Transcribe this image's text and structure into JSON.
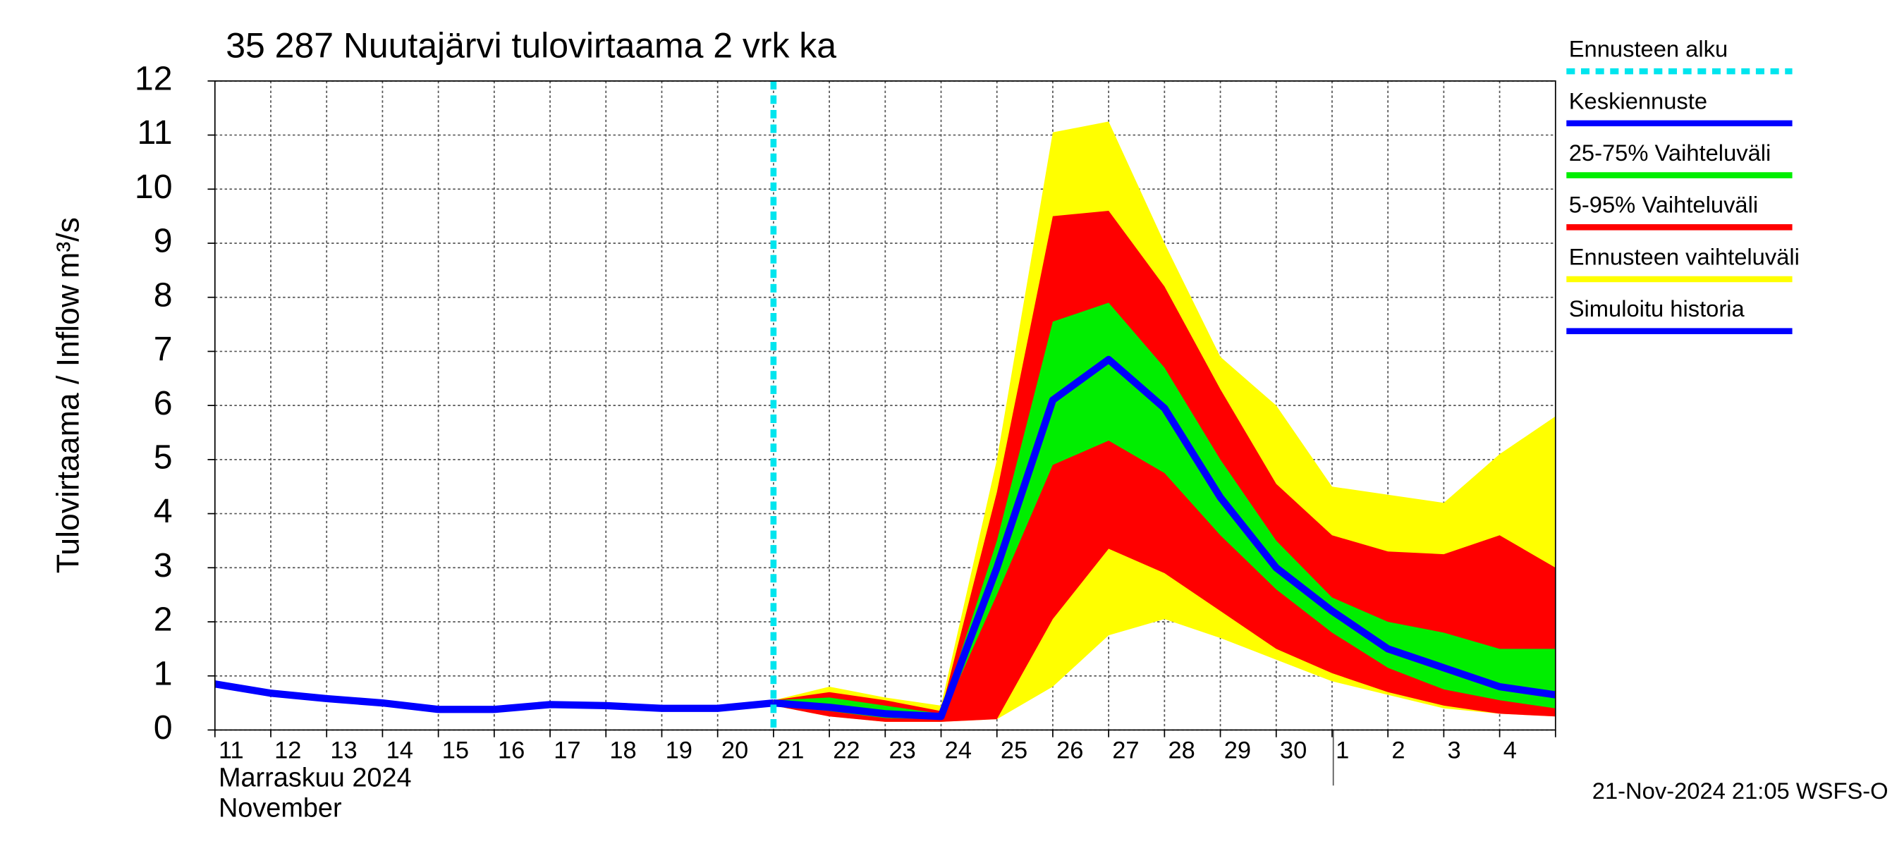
{
  "chart_data": {
    "type": "band-forecast",
    "title": "35 287 Nuutajärvi tulovirtaama 2 vrk ka",
    "y_label": "Tulovirtaama / Inflow",
    "y_unit": "m³/s",
    "x_label_fi": "Marraskuu 2024",
    "x_label_en": "November",
    "footer": "21-Nov-2024 21:05 WSFS-O",
    "categories": [
      "11",
      "12",
      "13",
      "14",
      "15",
      "16",
      "17",
      "18",
      "19",
      "20",
      "21",
      "22",
      "23",
      "24",
      "25",
      "26",
      "27",
      "28",
      "29",
      "30",
      "1",
      "2",
      "3",
      "4",
      null
    ],
    "ylim": [
      0,
      12
    ],
    "yticks": [
      0,
      1,
      2,
      3,
      4,
      5,
      6,
      7,
      8,
      9,
      10,
      11,
      12
    ],
    "grid": true,
    "forecast_start": {
      "name": "Ennusteen alku",
      "color": "#00e5ee",
      "at": "21"
    },
    "series": [
      {
        "name": "Keskiennuste",
        "color": "#0000ff",
        "kind": "line",
        "values": [
          null,
          null,
          null,
          null,
          null,
          null,
          null,
          null,
          null,
          null,
          0.5,
          0.42,
          0.3,
          0.25,
          3.0,
          6.1,
          6.85,
          5.95,
          4.3,
          3.0,
          2.2,
          1.5,
          1.15,
          0.8,
          0.65
        ]
      },
      {
        "name": "25-75% Vaihteluväli",
        "color": "#00ee00",
        "kind": "band",
        "high": [
          null,
          null,
          null,
          null,
          null,
          null,
          null,
          null,
          null,
          null,
          0.55,
          0.6,
          0.45,
          0.3,
          3.5,
          7.55,
          7.9,
          6.7,
          5.0,
          3.5,
          2.45,
          2.0,
          1.8,
          1.5,
          1.5
        ],
        "low": [
          null,
          null,
          null,
          null,
          null,
          null,
          null,
          null,
          null,
          null,
          0.45,
          0.35,
          0.22,
          0.2,
          2.5,
          4.9,
          5.35,
          4.75,
          3.6,
          2.6,
          1.8,
          1.15,
          0.75,
          0.55,
          0.4
        ]
      },
      {
        "name": "5-95% Vaihteluväli",
        "color": "#ff0000",
        "kind": "band",
        "high": [
          null,
          null,
          null,
          null,
          null,
          null,
          null,
          null,
          null,
          null,
          0.55,
          0.7,
          0.55,
          0.35,
          4.4,
          9.5,
          9.6,
          8.2,
          6.3,
          4.55,
          3.6,
          3.3,
          3.25,
          3.6,
          3.0
        ],
        "low": [
          null,
          null,
          null,
          null,
          null,
          null,
          null,
          null,
          null,
          null,
          0.45,
          0.25,
          0.15,
          0.15,
          0.2,
          2.05,
          3.35,
          2.9,
          2.2,
          1.5,
          1.05,
          0.7,
          0.45,
          0.3,
          0.25
        ]
      },
      {
        "name": "Ennusteen vaihteluväli",
        "color": "#ffff00",
        "kind": "band",
        "high": [
          null,
          null,
          null,
          null,
          null,
          null,
          null,
          null,
          null,
          null,
          0.55,
          0.8,
          0.6,
          0.45,
          5.0,
          11.05,
          11.25,
          9.0,
          6.9,
          6.0,
          4.5,
          4.35,
          4.2,
          5.1,
          5.8
        ],
        "low": [
          null,
          null,
          null,
          null,
          null,
          null,
          null,
          null,
          null,
          null,
          0.45,
          0.25,
          0.15,
          0.15,
          0.2,
          0.8,
          1.75,
          2.05,
          1.7,
          1.3,
          0.9,
          0.65,
          0.4,
          0.3,
          0.25
        ]
      },
      {
        "name": "Simuloitu historia",
        "color": "#0000ff",
        "kind": "line",
        "values": [
          0.85,
          0.68,
          0.58,
          0.5,
          0.38,
          0.38,
          0.47,
          0.45,
          0.4,
          0.4,
          0.5,
          null,
          null,
          null,
          null,
          null,
          null,
          null,
          null,
          null,
          null,
          null,
          null,
          null,
          null
        ]
      }
    ]
  }
}
